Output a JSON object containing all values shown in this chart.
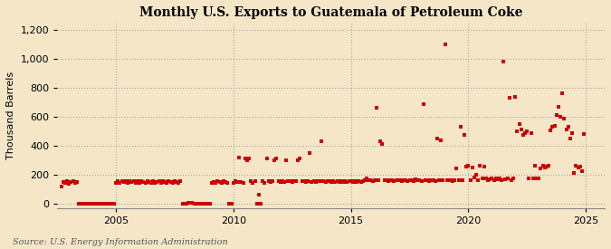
{
  "title": "Monthly U.S. Exports to Guatemala of Petroleum Coke",
  "ylabel": "Thousand Barrels",
  "source": "Source: U.S. Energy Information Administration",
  "background_color": "#f5e6c8",
  "dot_color": "#cc0000",
  "grid_color": "#aaaaaa",
  "ylim": [
    -30,
    1250
  ],
  "yticks": [
    0,
    200,
    400,
    600,
    800,
    1000,
    1200
  ],
  "ytick_labels": [
    "0",
    "200",
    "400",
    "600",
    "800",
    "1,000",
    "1,200"
  ],
  "xmin": 2002.5,
  "xmax": 2025.8,
  "xticks": [
    2005,
    2010,
    2015,
    2020,
    2025
  ],
  "data_points": [
    [
      2002.67,
      120
    ],
    [
      2002.75,
      150
    ],
    [
      2002.83,
      145
    ],
    [
      2002.92,
      155
    ],
    [
      2003.0,
      140
    ],
    [
      2003.08,
      150
    ],
    [
      2003.17,
      155
    ],
    [
      2003.25,
      145
    ],
    [
      2003.33,
      150
    ],
    [
      2003.42,
      0
    ],
    [
      2003.5,
      0
    ],
    [
      2003.58,
      0
    ],
    [
      2003.67,
      0
    ],
    [
      2003.75,
      0
    ],
    [
      2003.83,
      0
    ],
    [
      2003.92,
      0
    ],
    [
      2004.0,
      0
    ],
    [
      2004.08,
      0
    ],
    [
      2004.17,
      0
    ],
    [
      2004.25,
      0
    ],
    [
      2004.33,
      0
    ],
    [
      2004.42,
      0
    ],
    [
      2004.5,
      0
    ],
    [
      2004.58,
      0
    ],
    [
      2004.67,
      0
    ],
    [
      2004.75,
      0
    ],
    [
      2004.83,
      0
    ],
    [
      2004.92,
      0
    ],
    [
      2005.0,
      145
    ],
    [
      2005.08,
      155
    ],
    [
      2005.17,
      145
    ],
    [
      2005.25,
      155
    ],
    [
      2005.33,
      150
    ],
    [
      2005.42,
      155
    ],
    [
      2005.5,
      145
    ],
    [
      2005.58,
      155
    ],
    [
      2005.67,
      150
    ],
    [
      2005.75,
      155
    ],
    [
      2005.83,
      145
    ],
    [
      2005.92,
      155
    ],
    [
      2006.0,
      145
    ],
    [
      2006.08,
      155
    ],
    [
      2006.17,
      150
    ],
    [
      2006.25,
      145
    ],
    [
      2006.33,
      155
    ],
    [
      2006.42,
      150
    ],
    [
      2006.5,
      145
    ],
    [
      2006.58,
      155
    ],
    [
      2006.67,
      145
    ],
    [
      2006.75,
      150
    ],
    [
      2006.83,
      155
    ],
    [
      2006.92,
      145
    ],
    [
      2007.0,
      155
    ],
    [
      2007.08,
      150
    ],
    [
      2007.17,
      145
    ],
    [
      2007.25,
      155
    ],
    [
      2007.33,
      150
    ],
    [
      2007.42,
      145
    ],
    [
      2007.5,
      155
    ],
    [
      2007.58,
      150
    ],
    [
      2007.67,
      145
    ],
    [
      2007.75,
      155
    ],
    [
      2007.83,
      0
    ],
    [
      2007.92,
      0
    ],
    [
      2008.0,
      0
    ],
    [
      2008.08,
      5
    ],
    [
      2008.17,
      5
    ],
    [
      2008.25,
      5
    ],
    [
      2008.33,
      0
    ],
    [
      2008.42,
      0
    ],
    [
      2008.5,
      0
    ],
    [
      2008.58,
      0
    ],
    [
      2008.67,
      0
    ],
    [
      2008.75,
      0
    ],
    [
      2008.83,
      0
    ],
    [
      2008.92,
      0
    ],
    [
      2009.0,
      0
    ],
    [
      2009.08,
      145
    ],
    [
      2009.17,
      150
    ],
    [
      2009.25,
      145
    ],
    [
      2009.33,
      155
    ],
    [
      2009.42,
      150
    ],
    [
      2009.5,
      145
    ],
    [
      2009.58,
      155
    ],
    [
      2009.67,
      150
    ],
    [
      2009.75,
      145
    ],
    [
      2009.83,
      0
    ],
    [
      2009.92,
      0
    ],
    [
      2010.0,
      145
    ],
    [
      2010.08,
      155
    ],
    [
      2010.17,
      150
    ],
    [
      2010.25,
      320
    ],
    [
      2010.33,
      150
    ],
    [
      2010.42,
      145
    ],
    [
      2010.5,
      310
    ],
    [
      2010.58,
      300
    ],
    [
      2010.67,
      315
    ],
    [
      2010.75,
      155
    ],
    [
      2010.83,
      145
    ],
    [
      2010.92,
      155
    ],
    [
      2011.0,
      0
    ],
    [
      2011.08,
      60
    ],
    [
      2011.17,
      0
    ],
    [
      2011.25,
      155
    ],
    [
      2011.33,
      145
    ],
    [
      2011.42,
      310
    ],
    [
      2011.5,
      155
    ],
    [
      2011.58,
      150
    ],
    [
      2011.67,
      155
    ],
    [
      2011.75,
      300
    ],
    [
      2011.83,
      310
    ],
    [
      2011.92,
      155
    ],
    [
      2012.0,
      150
    ],
    [
      2012.08,
      155
    ],
    [
      2012.17,
      150
    ],
    [
      2012.25,
      300
    ],
    [
      2012.33,
      155
    ],
    [
      2012.42,
      155
    ],
    [
      2012.5,
      150
    ],
    [
      2012.58,
      155
    ],
    [
      2012.67,
      155
    ],
    [
      2012.75,
      300
    ],
    [
      2012.83,
      310
    ],
    [
      2012.92,
      155
    ],
    [
      2013.0,
      155
    ],
    [
      2013.08,
      150
    ],
    [
      2013.17,
      155
    ],
    [
      2013.25,
      350
    ],
    [
      2013.33,
      150
    ],
    [
      2013.42,
      155
    ],
    [
      2013.5,
      150
    ],
    [
      2013.58,
      155
    ],
    [
      2013.67,
      155
    ],
    [
      2013.75,
      430
    ],
    [
      2013.83,
      155
    ],
    [
      2013.92,
      150
    ],
    [
      2014.0,
      155
    ],
    [
      2014.08,
      155
    ],
    [
      2014.17,
      150
    ],
    [
      2014.25,
      155
    ],
    [
      2014.33,
      150
    ],
    [
      2014.42,
      155
    ],
    [
      2014.5,
      150
    ],
    [
      2014.58,
      155
    ],
    [
      2014.67,
      150
    ],
    [
      2014.75,
      155
    ],
    [
      2014.83,
      150
    ],
    [
      2014.92,
      155
    ],
    [
      2015.0,
      155
    ],
    [
      2015.08,
      150
    ],
    [
      2015.17,
      155
    ],
    [
      2015.25,
      150
    ],
    [
      2015.33,
      155
    ],
    [
      2015.42,
      150
    ],
    [
      2015.5,
      155
    ],
    [
      2015.58,
      160
    ],
    [
      2015.67,
      175
    ],
    [
      2015.75,
      165
    ],
    [
      2015.83,
      160
    ],
    [
      2015.92,
      155
    ],
    [
      2016.0,
      165
    ],
    [
      2016.08,
      665
    ],
    [
      2016.17,
      160
    ],
    [
      2016.25,
      430
    ],
    [
      2016.33,
      415
    ],
    [
      2016.42,
      165
    ],
    [
      2016.5,
      160
    ],
    [
      2016.58,
      155
    ],
    [
      2016.67,
      165
    ],
    [
      2016.75,
      160
    ],
    [
      2016.83,
      155
    ],
    [
      2016.92,
      165
    ],
    [
      2017.0,
      160
    ],
    [
      2017.08,
      165
    ],
    [
      2017.17,
      155
    ],
    [
      2017.25,
      165
    ],
    [
      2017.33,
      160
    ],
    [
      2017.42,
      155
    ],
    [
      2017.5,
      165
    ],
    [
      2017.58,
      160
    ],
    [
      2017.67,
      155
    ],
    [
      2017.75,
      170
    ],
    [
      2017.83,
      165
    ],
    [
      2017.92,
      160
    ],
    [
      2018.0,
      155
    ],
    [
      2018.08,
      690
    ],
    [
      2018.17,
      165
    ],
    [
      2018.25,
      160
    ],
    [
      2018.33,
      155
    ],
    [
      2018.42,
      165
    ],
    [
      2018.5,
      160
    ],
    [
      2018.58,
      155
    ],
    [
      2018.67,
      450
    ],
    [
      2018.75,
      160
    ],
    [
      2018.83,
      440
    ],
    [
      2018.92,
      165
    ],
    [
      2019.0,
      1100
    ],
    [
      2019.08,
      165
    ],
    [
      2019.17,
      165
    ],
    [
      2019.25,
      160
    ],
    [
      2019.33,
      155
    ],
    [
      2019.42,
      165
    ],
    [
      2019.5,
      245
    ],
    [
      2019.58,
      160
    ],
    [
      2019.67,
      530
    ],
    [
      2019.75,
      165
    ],
    [
      2019.83,
      475
    ],
    [
      2019.92,
      255
    ],
    [
      2020.0,
      260
    ],
    [
      2020.08,
      165
    ],
    [
      2020.17,
      250
    ],
    [
      2020.25,
      180
    ],
    [
      2020.33,
      200
    ],
    [
      2020.42,
      165
    ],
    [
      2020.5,
      260
    ],
    [
      2020.58,
      175
    ],
    [
      2020.67,
      255
    ],
    [
      2020.75,
      175
    ],
    [
      2020.83,
      165
    ],
    [
      2020.92,
      170
    ],
    [
      2021.0,
      175
    ],
    [
      2021.08,
      165
    ],
    [
      2021.17,
      175
    ],
    [
      2021.25,
      170
    ],
    [
      2021.33,
      175
    ],
    [
      2021.42,
      165
    ],
    [
      2021.5,
      980
    ],
    [
      2021.58,
      170
    ],
    [
      2021.67,
      175
    ],
    [
      2021.75,
      730
    ],
    [
      2021.83,
      165
    ],
    [
      2021.92,
      175
    ],
    [
      2022.0,
      740
    ],
    [
      2022.08,
      500
    ],
    [
      2022.17,
      550
    ],
    [
      2022.25,
      515
    ],
    [
      2022.33,
      475
    ],
    [
      2022.42,
      485
    ],
    [
      2022.5,
      500
    ],
    [
      2022.58,
      175
    ],
    [
      2022.67,
      490
    ],
    [
      2022.75,
      175
    ],
    [
      2022.83,
      265
    ],
    [
      2022.92,
      175
    ],
    [
      2023.0,
      175
    ],
    [
      2023.08,
      245
    ],
    [
      2023.17,
      265
    ],
    [
      2023.25,
      250
    ],
    [
      2023.33,
      255
    ],
    [
      2023.42,
      260
    ],
    [
      2023.5,
      505
    ],
    [
      2023.58,
      530
    ],
    [
      2023.67,
      540
    ],
    [
      2023.75,
      610
    ],
    [
      2023.83,
      670
    ],
    [
      2023.92,
      600
    ],
    [
      2024.0,
      760
    ],
    [
      2024.08,
      590
    ],
    [
      2024.17,
      515
    ],
    [
      2024.25,
      530
    ],
    [
      2024.33,
      450
    ],
    [
      2024.42,
      490
    ],
    [
      2024.5,
      210
    ],
    [
      2024.58,
      260
    ],
    [
      2024.67,
      250
    ],
    [
      2024.75,
      255
    ],
    [
      2024.83,
      225
    ],
    [
      2024.92,
      480
    ]
  ]
}
